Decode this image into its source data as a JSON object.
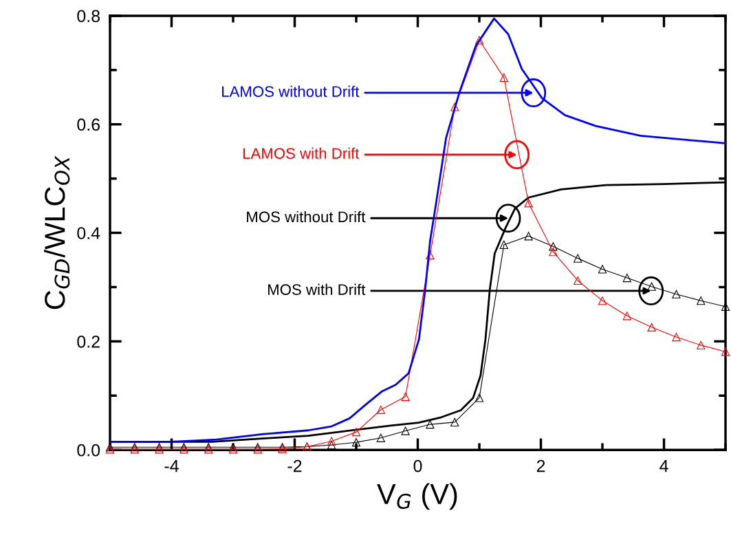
{
  "chart_data": {
    "type": "line",
    "xlabel": "V$_{G}$ (V)",
    "ylabel": "C$_{GD}$/WLC$_{OX}$",
    "xlim": [
      -5,
      5
    ],
    "xticks": [
      -4,
      -2,
      0,
      2,
      4
    ],
    "ylim": [
      0,
      0.8
    ],
    "yticks": [
      {
        "value": 0,
        "label": "0.0"
      },
      {
        "value": 0.2,
        "label": "0.2"
      },
      {
        "value": 0.4,
        "label": "0.4"
      },
      {
        "value": 0.6,
        "label": "0.6"
      },
      {
        "value": 0.8,
        "label": "0.8"
      }
    ],
    "grid": false,
    "series": [
      {
        "color": "#0000ff",
        "marker": "none",
        "x": [
          -5,
          -4.02,
          -3.27,
          -2.53,
          -1.78,
          -1.41,
          -1.11,
          -0.85,
          -0.58,
          -0.36,
          -0.15,
          0.02,
          0.12,
          0.2,
          0.29,
          0.46,
          0.68,
          0.94,
          1.24,
          1.47,
          1.69,
          2.02,
          2.39,
          2.89,
          3.62,
          5.0
        ],
        "values": [
          0.015,
          0.015,
          0.019,
          0.029,
          0.036,
          0.043,
          0.058,
          0.083,
          0.108,
          0.12,
          0.141,
          0.204,
          0.295,
          0.385,
          0.449,
          0.575,
          0.66,
          0.744,
          0.795,
          0.766,
          0.702,
          0.648,
          0.617,
          0.597,
          0.579,
          0.565
        ]
      },
      {
        "color": "#ff0000",
        "marker": "triangle",
        "x": [
          -5.0,
          -4.6,
          -4.2,
          -3.8,
          -3.4,
          -3.0,
          -2.6,
          -2.2,
          -1.8,
          -1.4,
          -1.0,
          -0.6,
          -0.2,
          0.2,
          0.6,
          1.0,
          1.4,
          1.8,
          2.2,
          2.6,
          3.0,
          3.4,
          3.8,
          4.2,
          4.6,
          5.0
        ],
        "values": [
          0.001,
          0.001,
          0.001,
          0.001,
          0.001,
          0.001,
          0.001,
          0.002,
          0.006,
          0.016,
          0.033,
          0.074,
          0.098,
          0.359,
          0.632,
          0.755,
          0.686,
          0.455,
          0.365,
          0.312,
          0.275,
          0.247,
          0.226,
          0.208,
          0.193,
          0.181
        ]
      },
      {
        "color": "#000000",
        "marker": "none",
        "x": [
          -5,
          -3.34,
          -2.53,
          -1.78,
          -1.22,
          -0.42,
          0.01,
          0.38,
          0.7,
          0.9,
          1.02,
          1.1,
          1.17,
          1.25,
          1.43,
          1.58,
          1.8,
          2.33,
          3.06,
          4.0,
          5.0
        ],
        "values": [
          0.015,
          0.015,
          0.021,
          0.026,
          0.034,
          0.045,
          0.05,
          0.06,
          0.073,
          0.096,
          0.137,
          0.204,
          0.295,
          0.362,
          0.41,
          0.445,
          0.465,
          0.48,
          0.488,
          0.49,
          0.493
        ]
      },
      {
        "color": "#000000",
        "marker": "triangle",
        "x": [
          -5.0,
          -4.6,
          -4.2,
          -3.8,
          -3.4,
          -3.0,
          -2.6,
          -2.2,
          -1.8,
          -1.4,
          -1.0,
          -0.6,
          -0.2,
          0.2,
          0.6,
          1.0,
          1.4,
          1.8,
          2.2,
          2.6,
          3.0,
          3.4,
          3.8,
          4.2,
          4.6,
          5.0
        ],
        "values": [
          0.005,
          0.005,
          0.005,
          0.005,
          0.005,
          0.005,
          0.005,
          0.005,
          0.006,
          0.009,
          0.014,
          0.022,
          0.035,
          0.047,
          0.051,
          0.096,
          0.378,
          0.394,
          0.375,
          0.353,
          0.333,
          0.317,
          0.301,
          0.287,
          0.275,
          0.264
        ]
      }
    ],
    "annotations": [
      {
        "text": "LAMOS without Drift",
        "x": 1.88,
        "y": 0.658
      },
      {
        "text": "LAMOS with Drift",
        "x": 1.61,
        "y": 0.544
      },
      {
        "text": "MOS without Drift",
        "x": 1.47,
        "y": 0.427
      },
      {
        "text": "MOS with Drift",
        "x": 3.79,
        "y": 0.293
      }
    ]
  }
}
